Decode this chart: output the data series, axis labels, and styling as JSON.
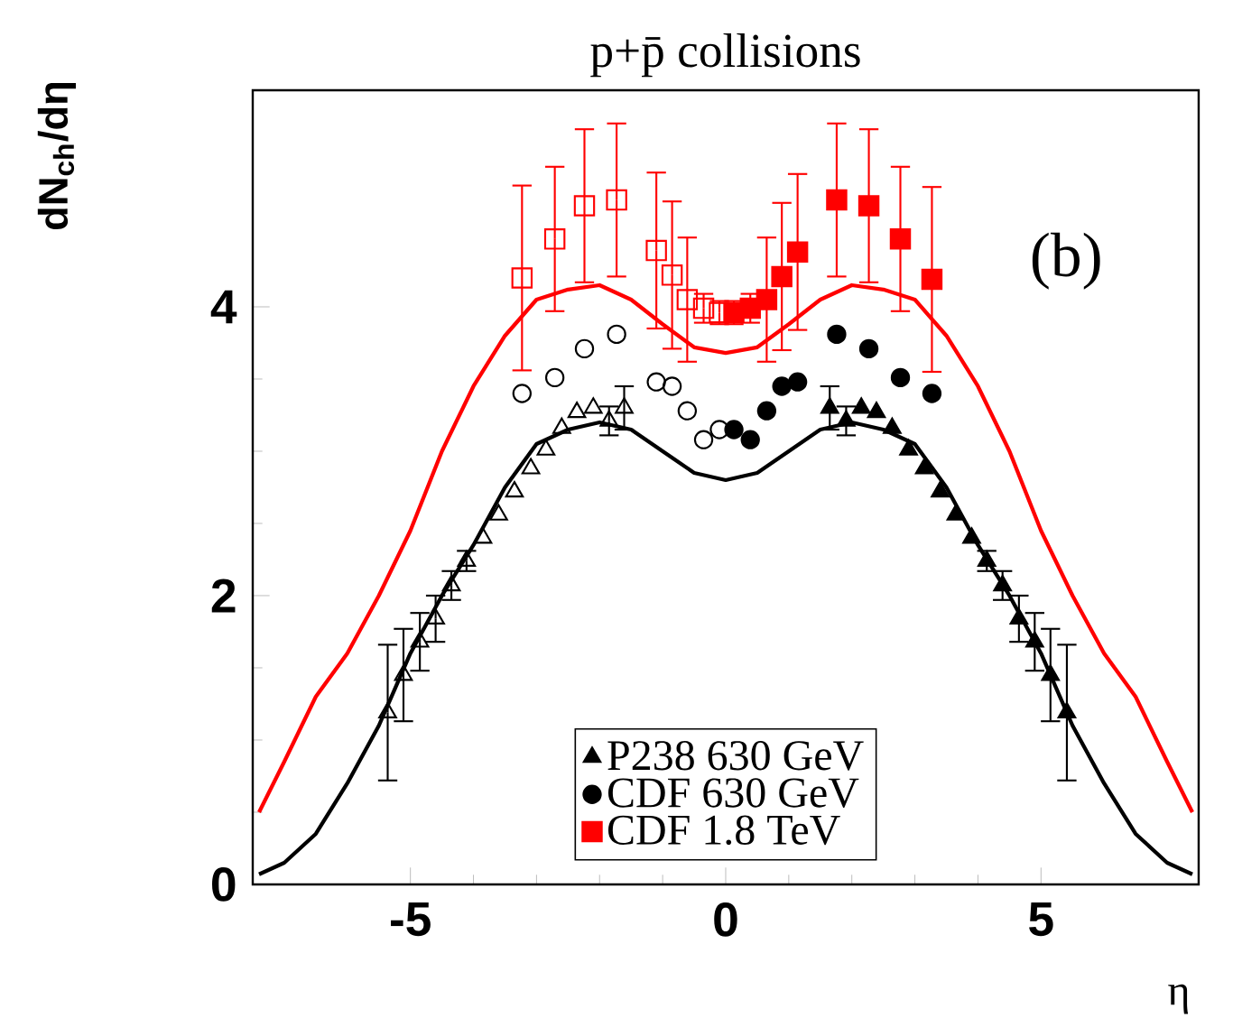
{
  "chart_data": {
    "type": "scatter",
    "title": "p+p̄ collisions",
    "xlabel": "η",
    "ylabel": "dN$_{ch}$/dη",
    "annotations": [
      "(b)"
    ],
    "xlim": [
      -7.5,
      7.5
    ],
    "ylim": [
      0,
      5.5
    ],
    "xticks": [
      -5,
      0,
      5
    ],
    "yticks": [
      0,
      2,
      4
    ],
    "legend": "bottom",
    "grid": false,
    "series": [
      {
        "type": "line",
        "color": "#ff0000",
        "x": [
          -7.4,
          -7,
          -6.5,
          -6,
          -5.5,
          -5,
          -4.5,
          -4,
          -3.5,
          -3,
          -2.5,
          -2,
          -1.5,
          -1,
          -0.5,
          0,
          0.5,
          1,
          1.5,
          2,
          2.5,
          3,
          3.5,
          4,
          4.5,
          5,
          5.5,
          6,
          6.5,
          7,
          7.4
        ],
        "values": [
          0.5,
          0.85,
          1.3,
          1.6,
          2.0,
          2.45,
          3.0,
          3.45,
          3.8,
          4.05,
          4.12,
          4.15,
          4.05,
          3.88,
          3.72,
          3.68,
          3.72,
          3.88,
          4.05,
          4.15,
          4.12,
          4.05,
          3.8,
          3.45,
          3.0,
          2.45,
          2.0,
          1.6,
          1.3,
          0.85,
          0.5
        ]
      },
      {
        "type": "line",
        "color": "#000000",
        "x": [
          -7.4,
          -7,
          -6.5,
          -6,
          -5.5,
          -5,
          -4.5,
          -4,
          -3.5,
          -3,
          -2.5,
          -2,
          -1.5,
          -1,
          -0.5,
          0,
          0.5,
          1,
          1.5,
          2,
          2.5,
          3,
          3.5,
          4,
          4.5,
          5,
          5.5,
          6,
          6.5,
          7,
          7.4
        ],
        "values": [
          0.07,
          0.15,
          0.35,
          0.7,
          1.1,
          1.6,
          2.0,
          2.35,
          2.75,
          3.05,
          3.15,
          3.2,
          3.15,
          3.0,
          2.85,
          2.8,
          2.85,
          3.0,
          3.15,
          3.2,
          3.15,
          3.05,
          2.75,
          2.35,
          2.0,
          1.6,
          1.1,
          0.7,
          0.35,
          0.15,
          0.07
        ]
      },
      {
        "name": "P238 630 GeV",
        "color": "#000000",
        "marker": "triangle",
        "x": [
          1.65,
          1.91,
          2.15,
          2.39,
          2.64,
          2.9,
          3.15,
          3.4,
          3.65,
          3.9,
          4.14,
          4.39,
          4.65,
          4.9,
          5.15,
          5.41
        ],
        "values": [
          3.3,
          3.21,
          3.3,
          3.27,
          3.16,
          3.01,
          2.88,
          2.72,
          2.56,
          2.4,
          2.24,
          2.07,
          1.84,
          1.68,
          1.45,
          1.19
        ],
        "errors": [
          0.15,
          0.1,
          null,
          null,
          null,
          null,
          null,
          null,
          null,
          null,
          0.07,
          0.1,
          0.16,
          0.2,
          0.32,
          0.47
        ]
      },
      {
        "color": "#000000",
        "marker": "triangle",
        "x": [
          -5.36,
          -5.11,
          -4.85,
          -4.6,
          -4.35,
          -4.11,
          -3.85,
          -3.6,
          -3.35,
          -3.09,
          -2.85,
          -2.6,
          -2.36,
          -2.1,
          -1.85,
          -1.61
        ],
        "values": [
          1.19,
          1.45,
          1.68,
          1.84,
          2.07,
          2.24,
          2.4,
          2.56,
          2.72,
          2.88,
          3.01,
          3.16,
          3.27,
          3.3,
          3.21,
          3.3
        ],
        "errors": [
          0.47,
          0.32,
          0.2,
          0.16,
          0.1,
          0.07,
          null,
          null,
          null,
          null,
          null,
          null,
          null,
          null,
          0.1,
          0.15
        ]
      },
      {
        "name": "CDF 630 GeV",
        "color": "#000000",
        "marker": "circle",
        "x": [
          0.13,
          0.39,
          0.65,
          0.89,
          1.14,
          1.76,
          2.27,
          2.77,
          3.27
        ],
        "values": [
          3.15,
          3.08,
          3.28,
          3.45,
          3.48,
          3.81,
          3.71,
          3.51,
          3.4
        ]
      },
      {
        "color": "#000000",
        "marker": "circle",
        "x": [
          -3.23,
          -2.71,
          -2.24,
          -1.73,
          -1.1,
          -0.85,
          -0.61,
          -0.35,
          -0.1
        ],
        "values": [
          3.4,
          3.51,
          3.71,
          3.81,
          3.48,
          3.45,
          3.28,
          3.08,
          3.15
        ]
      },
      {
        "name": "CDF 1.8 TeV",
        "color": "#ff0000",
        "marker": "square",
        "x": [
          0.13,
          0.39,
          0.65,
          0.89,
          1.14,
          1.76,
          2.27,
          2.77,
          3.27
        ],
        "values": [
          3.96,
          3.99,
          4.05,
          4.21,
          4.38,
          4.74,
          4.7,
          4.47,
          4.19
        ],
        "errors": [
          0.08,
          0.1,
          0.43,
          0.51,
          0.54,
          0.53,
          0.53,
          0.5,
          0.64
        ]
      },
      {
        "color": "#ff0000",
        "marker": "square",
        "x": [
          -3.23,
          -2.71,
          -2.24,
          -1.73,
          -1.1,
          -0.85,
          -0.61,
          -0.35,
          -0.1
        ],
        "values": [
          4.2,
          4.47,
          4.7,
          4.74,
          4.39,
          4.22,
          4.05,
          3.99,
          3.96
        ],
        "errors": [
          0.64,
          0.5,
          0.53,
          0.53,
          0.54,
          0.51,
          0.43,
          0.1,
          0.08
        ]
      }
    ]
  }
}
